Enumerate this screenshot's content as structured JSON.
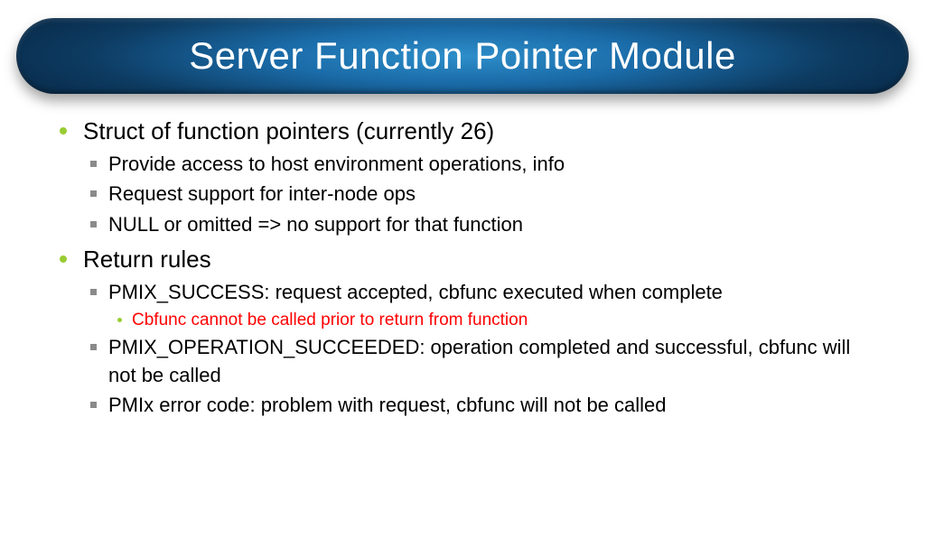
{
  "title": "Server Function Pointer Module",
  "colors": {
    "bullet_primary": "#99cc33",
    "bullet_secondary": "#8a8a8a",
    "highlight": "#ff0000",
    "title_text": "#ffffff",
    "body_text": "#000000",
    "background": "#ffffff"
  },
  "typography": {
    "title_fontsize": 42,
    "lvl1_fontsize": 26,
    "lvl2_fontsize": 22,
    "lvl3_fontsize": 19
  },
  "bullets": [
    {
      "text": "Struct of function pointers (currently 26)",
      "sub": [
        {
          "text": "Provide access to host environment operations, info"
        },
        {
          "text": "Request support for inter-node ops"
        },
        {
          "text": "NULL or omitted => no support for that function"
        }
      ]
    },
    {
      "text": "Return rules",
      "sub": [
        {
          "text": "PMIX_SUCCESS: request accepted, cbfunc executed when complete",
          "sub": [
            {
              "text": "Cbfunc cannot be called prior to return from function",
              "highlight": true
            }
          ]
        },
        {
          "text": "PMIX_OPERATION_SUCCEEDED: operation completed and successful, cbfunc will not be called"
        },
        {
          "text": "PMIx error code: problem with request, cbfunc will not be called"
        }
      ]
    }
  ]
}
